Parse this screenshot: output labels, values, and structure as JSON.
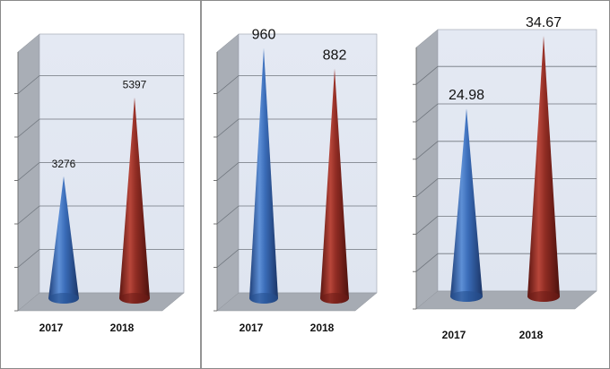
{
  "chart_data": [
    {
      "type": "bar",
      "categories": [
        "2017",
        "2018"
      ],
      "values": [
        3276,
        5397
      ],
      "data_labels": [
        "3276",
        "5397"
      ],
      "ylim": [
        0,
        7000
      ],
      "grid": true,
      "colors": [
        "#2f5fa6",
        "#8b2a22"
      ]
    },
    {
      "type": "bar",
      "categories": [
        "2017",
        "2018"
      ],
      "values": [
        960,
        882
      ],
      "data_labels": [
        "960",
        "882"
      ],
      "ylim": [
        0,
        1000
      ],
      "grid": true,
      "colors": [
        "#2f5fa6",
        "#8b2a22"
      ]
    },
    {
      "type": "bar",
      "categories": [
        "2017",
        "2018"
      ],
      "values": [
        24.98,
        34.67
      ],
      "data_labels": [
        "24.98",
        "34.67"
      ],
      "ylim": [
        0,
        35
      ],
      "grid": true,
      "colors": [
        "#2f5fa6",
        "#8b2a22"
      ]
    }
  ]
}
